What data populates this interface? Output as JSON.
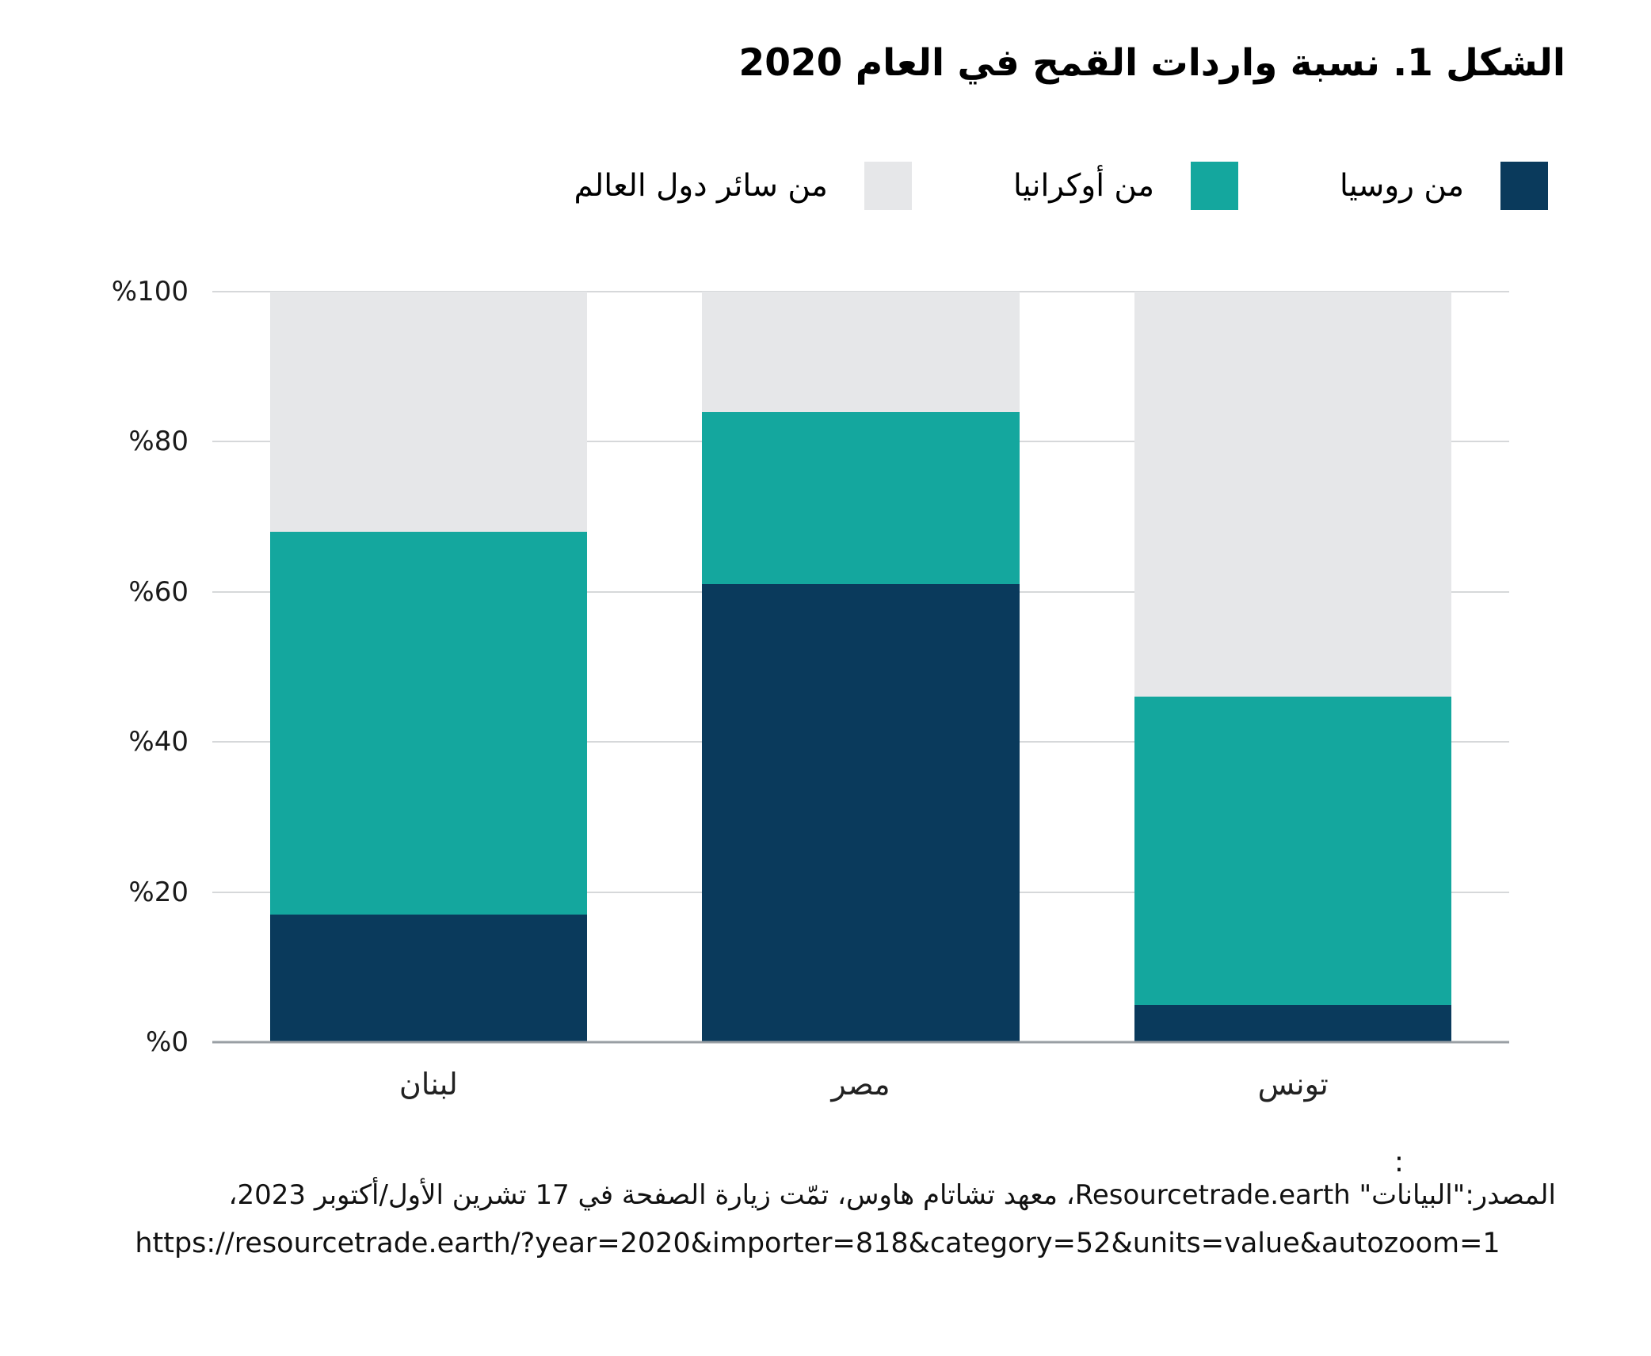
{
  "chart_data": {
    "type": "bar",
    "stacked": true,
    "title": "الشكل 1. نسبة واردات القمح في العام 2020",
    "categories": [
      "لبنان",
      "مصر",
      "تونس"
    ],
    "series": [
      {
        "name": "من روسيا",
        "color": "#0a3a5c",
        "values": [
          17,
          61,
          5
        ]
      },
      {
        "name": "من أوكرانيا",
        "color": "#14a79e",
        "values": [
          51,
          23,
          41
        ]
      },
      {
        "name": "من سائر دول العالم",
        "color": "#e6e7e9",
        "values": [
          32,
          16,
          54
        ]
      }
    ],
    "ylim": [
      0,
      100
    ],
    "yticks": [
      {
        "value": 0,
        "label": "%0"
      },
      {
        "value": 20,
        "label": "%20"
      },
      {
        "value": 40,
        "label": "%40"
      },
      {
        "value": 60,
        "label": "%60"
      },
      {
        "value": 80,
        "label": "%80"
      },
      {
        "value": 100,
        "label": "%100"
      }
    ],
    "grid": true,
    "legend_position": "top-right",
    "colors": {
      "gridline": "#d6d8da",
      "baseline": "#999fa4",
      "background": "#ffffff"
    }
  },
  "footnote": {
    "colon": ":",
    "line1": "المصدر:\"البيانات\" Resourcetrade.earth، معهد تشاتام هاوس، تمّت زيارة الصفحة في 17 تشرين الأول/أكتوبر 2023،",
    "line2": "https://resourcetrade.earth/?year=2020&importer=818&category=52&units=value&autozoom=1"
  }
}
